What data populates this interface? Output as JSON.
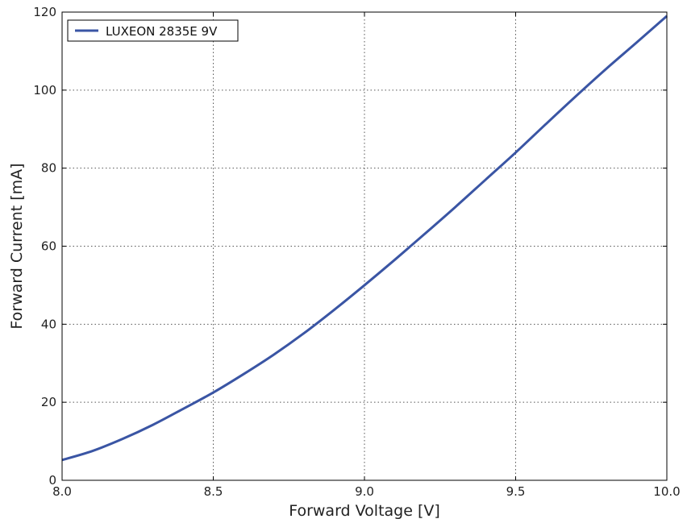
{
  "chart_data": {
    "type": "line",
    "xlabel": "Forward Voltage [V]",
    "ylabel": "Forward Current [mA]",
    "xlim": [
      8.0,
      10.0
    ],
    "ylim": [
      0,
      120
    ],
    "xticks": [
      "8.0",
      "8.5",
      "9.0",
      "9.5",
      "10.0"
    ],
    "yticks": [
      "0",
      "20",
      "40",
      "60",
      "80",
      "100",
      "120"
    ],
    "grid": true,
    "legend_position": "top-left",
    "series": [
      {
        "name": "LUXEON 2835E 9V",
        "color": "#3a55a4",
        "x": [
          8.0,
          8.1,
          8.2,
          8.3,
          8.4,
          8.5,
          8.6,
          8.7,
          8.8,
          8.9,
          9.0,
          9.1,
          9.2,
          9.3,
          9.4,
          9.5,
          9.6,
          9.7,
          9.8,
          9.9,
          10.0
        ],
        "y": [
          5.2,
          7.5,
          10.6,
          14.2,
          18.3,
          22.5,
          27.2,
          32.2,
          37.7,
          43.7,
          50.0,
          56.5,
          63.2,
          70.0,
          77.0,
          84.0,
          91.3,
          98.5,
          105.5,
          112.2,
          119.0
        ]
      }
    ]
  }
}
